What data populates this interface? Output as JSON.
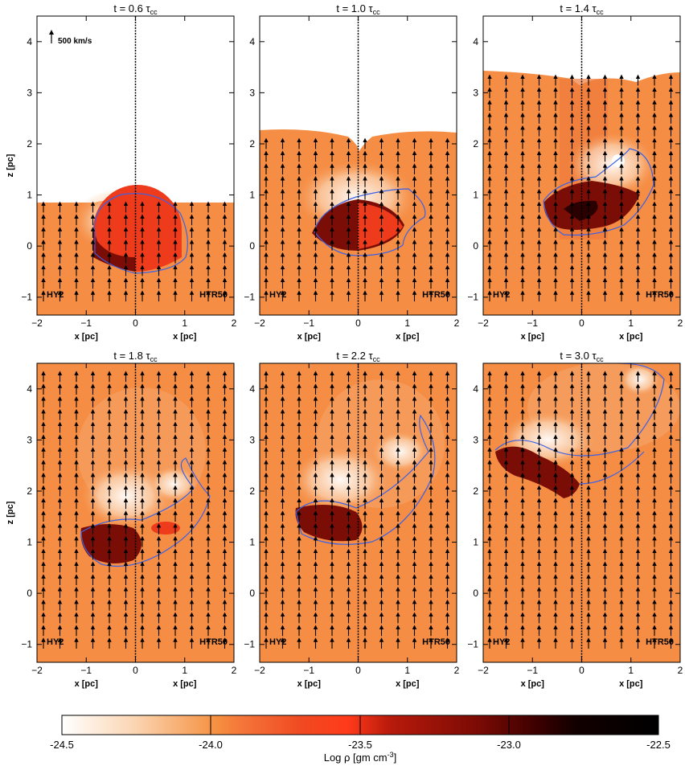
{
  "panels": [
    {
      "title": "t = 0.6 τ",
      "title_sub": "cc",
      "left_label": "HY2",
      "right_label": "HTR50",
      "show_velocity_key": true,
      "velocity_key_label": "500 km/s"
    },
    {
      "title": "t = 1.0 τ",
      "title_sub": "cc",
      "left_label": "HY2",
      "right_label": "HTR50",
      "show_velocity_key": false,
      "velocity_key_label": ""
    },
    {
      "title": "t = 1.4 τ",
      "title_sub": "cc",
      "left_label": "HY2",
      "right_label": "HTR50",
      "show_velocity_key": false,
      "velocity_key_label": ""
    },
    {
      "title": "t = 1.8 τ",
      "title_sub": "cc",
      "left_label": "HY2",
      "right_label": "HTR50",
      "show_velocity_key": false,
      "velocity_key_label": ""
    },
    {
      "title": "t = 2.2 τ",
      "title_sub": "cc",
      "left_label": "HY2",
      "right_label": "HTR50",
      "show_velocity_key": false,
      "velocity_key_label": ""
    },
    {
      "title": "t = 3.0 τ",
      "title_sub": "cc",
      "left_label": "HY2",
      "right_label": "HTR50",
      "show_velocity_key": false,
      "velocity_key_label": ""
    }
  ],
  "axes": {
    "xlabel": "x [pc]",
    "ylabel": "z [pc]",
    "x_ticks": [
      "−2",
      "−1",
      "0",
      "1",
      "2"
    ],
    "y_ticks": [
      "4",
      "3",
      "2",
      "1",
      "0",
      "−1"
    ]
  },
  "colorbar": {
    "tick_labels": [
      "-24.5",
      "-24.0",
      "-23.5",
      "-23.0",
      "-22.5"
    ],
    "label": "Log ρ [gm cm",
    "label_sup": "-3",
    "label_end": "]"
  },
  "colors": {
    "ambient": "#f58d45",
    "shell_light": "#f7a561",
    "white_glow": "#fff6ec",
    "cloud_red": "#ee3b1c",
    "cloud_dark": "#7a0d06",
    "cloud_black": "#2a0000",
    "contour": "#3a62e6",
    "arrow": "#000000"
  }
}
